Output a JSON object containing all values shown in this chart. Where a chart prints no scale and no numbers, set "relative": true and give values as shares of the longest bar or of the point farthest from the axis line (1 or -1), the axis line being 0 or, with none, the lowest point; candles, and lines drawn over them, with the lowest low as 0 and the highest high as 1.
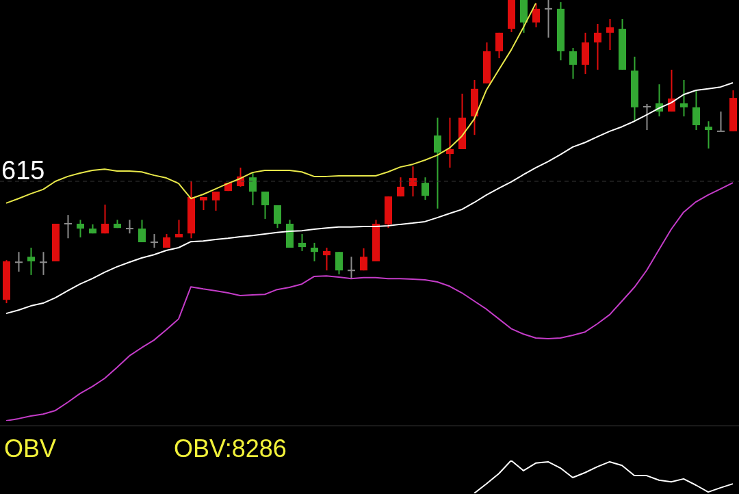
{
  "chart_data": [
    {
      "type": "candlestick",
      "relative": true,
      "categories": [
        null,
        null,
        null,
        null,
        null,
        null,
        null,
        null,
        null,
        null,
        null,
        null,
        null,
        null,
        null,
        null,
        null,
        null,
        null,
        null,
        null,
        null,
        null,
        null,
        null,
        null,
        null,
        null,
        null,
        null,
        null,
        null,
        null,
        null,
        null,
        null,
        null,
        null,
        null,
        null,
        null,
        null,
        null,
        null,
        null,
        null,
        null,
        null,
        null,
        null,
        null,
        null,
        null,
        null,
        null,
        null,
        null,
        null,
        null,
        null
      ],
      "ohlc": [
        [
          0.011,
          0.142,
          0,
          0.138
        ],
        [
          0.135,
          0.169,
          0.104,
          0.135
        ],
        [
          0.153,
          0.183,
          0.093,
          0.138
        ],
        [
          0.135,
          0.169,
          0.093,
          0.135
        ],
        [
          0.138,
          0.262,
          0.138,
          0.262
        ],
        [
          0.262,
          0.291,
          0.214,
          0.262
        ],
        [
          0.262,
          0.275,
          0.217,
          0.246
        ],
        [
          0.246,
          0.26,
          0.23,
          0.23
        ],
        [
          0.23,
          0.325,
          0.23,
          0.262
        ],
        [
          0.262,
          0.275,
          0.248,
          0.248
        ],
        [
          0.246,
          0.275,
          0.23,
          0.246
        ],
        [
          0.246,
          0.275,
          0.201,
          0.201
        ],
        [
          0.201,
          0.228,
          0.183,
          0.201
        ],
        [
          0.183,
          0.228,
          0.183,
          0.217
        ],
        [
          0.217,
          0.275,
          0.217,
          0.228
        ],
        [
          0.23,
          0.402,
          0.214,
          0.35
        ],
        [
          0.339,
          0.35,
          0.307,
          0.35
        ],
        [
          0.339,
          0.368,
          0.305,
          0.368
        ],
        [
          0.37,
          0.397,
          0.37,
          0.397
        ],
        [
          0.386,
          0.447,
          0.384,
          0.418
        ],
        [
          0.415,
          0.431,
          0.323,
          0.368
        ],
        [
          0.368,
          0.368,
          0.278,
          0.323
        ],
        [
          0.323,
          0.323,
          0.248,
          0.262
        ],
        [
          0.262,
          0.275,
          0.183,
          0.183
        ],
        [
          0.199,
          0.228,
          0.172,
          0.185
        ],
        [
          0.183,
          0.199,
          0.138,
          0.169
        ],
        [
          0.158,
          0.183,
          0.108,
          0.172
        ],
        [
          0.169,
          0.169,
          0.095,
          0.108
        ],
        [
          0.108,
          0.153,
          0.081,
          0.108
        ],
        [
          0.108,
          0.181,
          0.108,
          0.153
        ],
        [
          0.138,
          0.275,
          0.138,
          0.262
        ],
        [
          0.26,
          0.352,
          0.248,
          0.352
        ],
        [
          0.352,
          0.415,
          0.352,
          0.384
        ],
        [
          0.386,
          0.451,
          0.352,
          0.413
        ],
        [
          0.397,
          0.415,
          0.341,
          0.354
        ],
        [
          0.553,
          0.612,
          0.312,
          0.497
        ],
        [
          0.492,
          0.612,
          0.447,
          0.508
        ],
        [
          0.508,
          0.691,
          0.508,
          0.612
        ],
        [
          0.616,
          0.736,
          0.555,
          0.707
        ],
        [
          0.725,
          0.86,
          0.725,
          0.831
        ],
        [
          0.831,
          0.892,
          0.808,
          0.892
        ],
        [
          0.905,
          1,
          0.894,
          1
        ],
        [
          1,
          1,
          0.892,
          0.926
        ],
        [
          0.926,
          0.989,
          0.91,
          0.971
        ],
        [
          0.971,
          1,
          0.876,
          0.971
        ],
        [
          0.971,
          0.993,
          0.801,
          0.831
        ],
        [
          0.831,
          0.842,
          0.74,
          0.786
        ],
        [
          0.786,
          0.892,
          0.756,
          0.86
        ],
        [
          0.86,
          0.921,
          0.77,
          0.892
        ],
        [
          0.892,
          0.937,
          0.835,
          0.91
        ],
        [
          0.905,
          0.937,
          0.77,
          0.77
        ],
        [
          0.767,
          0.813,
          0.6,
          0.646
        ],
        [
          0.648,
          0.657,
          0.571,
          0.648
        ],
        [
          0.659,
          0.722,
          0.616,
          0.632
        ],
        [
          0.632,
          0.77,
          0.632,
          0.675
        ],
        [
          0.659,
          0.736,
          0.616,
          0.646
        ],
        [
          0.646,
          0.702,
          0.571,
          0.587
        ],
        [
          0.582,
          0.6,
          0.51,
          0.571
        ],
        [
          0.567,
          0.632,
          0.567,
          0.567
        ],
        [
          0.567,
          0.702,
          0.567,
          0.677
        ]
      ],
      "colors": [
        "#e00d0d",
        "#8c8c8c",
        "#33a833",
        "#8c8c8c",
        "#e00d0d",
        "#8c8c8c",
        "#33a833",
        "#33a833",
        "#e00d0d",
        "#33a833",
        "#8c8c8c",
        "#33a833",
        "#8c8c8c",
        "#e00d0d",
        "#e00d0d",
        "#e00d0d",
        "#e00d0d",
        "#e00d0d",
        "#e00d0d",
        "#e00d0d",
        "#33a833",
        "#33a833",
        "#33a833",
        "#33a833",
        "#33a833",
        "#33a833",
        "#e00d0d",
        "#33a833",
        "#8c8c8c",
        "#e00d0d",
        "#e00d0d",
        "#e00d0d",
        "#e00d0d",
        "#e00d0d",
        "#33a833",
        "#33a833",
        "#e00d0d",
        "#e00d0d",
        "#e00d0d",
        "#e00d0d",
        "#e00d0d",
        "#e00d0d",
        "#33a833",
        "#e00d0d",
        "#8c8c8c",
        "#33a833",
        "#33a833",
        "#e00d0d",
        "#e00d0d",
        "#e00d0d",
        "#33a833",
        "#33a833",
        "#8c8c8c",
        "#33a833",
        "#e00d0d",
        "#33a833",
        "#33a833",
        "#33a833",
        "#8c8c8c",
        "#e00d0d"
      ],
      "series": [
        {
          "type": "line",
          "color": "#e8e84a",
          "values": [
            0.33,
            0.345,
            0.361,
            0.375,
            0.402,
            0.418,
            0.429,
            0.438,
            0.442,
            0.436,
            0.436,
            0.433,
            0.422,
            0.413,
            0.395,
            0.345,
            0.359,
            0.377,
            0.395,
            0.411,
            0.431,
            0.438,
            0.438,
            0.438,
            0.433,
            0.418,
            0.418,
            0.42,
            0.42,
            0.42,
            0.42,
            0.433,
            0.449,
            0.458,
            0.472,
            0.488,
            0.512,
            0.551,
            0.607,
            0.704,
            0.77,
            0.835,
            0.91,
            0.989,
            null,
            null,
            null,
            null,
            null,
            null,
            null,
            null,
            null,
            null,
            null,
            null,
            null,
            null,
            null,
            null
          ]
        },
        {
          "type": "line",
          "color": "#ffffff",
          "values": [
            -0.034,
            -0.023,
            -0.009,
            0,
            0.018,
            0.041,
            0.063,
            0.081,
            0.102,
            0.12,
            0.135,
            0.149,
            0.16,
            0.174,
            0.183,
            0.203,
            0.205,
            0.21,
            0.214,
            0.219,
            0.223,
            0.228,
            0.233,
            0.237,
            0.239,
            0.244,
            0.248,
            0.251,
            0.251,
            0.253,
            0.253,
            0.255,
            0.26,
            0.264,
            0.269,
            0.282,
            0.296,
            0.309,
            0.332,
            0.357,
            0.379,
            0.4,
            0.424,
            0.447,
            0.467,
            0.49,
            0.515,
            0.53,
            0.549,
            0.567,
            0.582,
            0.6,
            0.621,
            0.643,
            0.661,
            0.688,
            0.702,
            0.707,
            0.713,
            0.727
          ]
        },
        {
          "type": "line",
          "color": "#c43cc8",
          "values": [
            -0.388,
            -0.381,
            -0.372,
            -0.366,
            -0.354,
            -0.327,
            -0.298,
            -0.275,
            -0.248,
            -0.212,
            -0.174,
            -0.147,
            -0.122,
            -0.088,
            -0.052,
            0.054,
            0.047,
            0.041,
            0.034,
            0.025,
            0.027,
            0.029,
            0.045,
            0.052,
            0.063,
            0.088,
            0.09,
            0.086,
            0.081,
            0.084,
            0.084,
            0.081,
            0.081,
            0.079,
            0.077,
            0.07,
            0.056,
            0.034,
            0.007,
            -0.02,
            -0.052,
            -0.084,
            -0.102,
            -0.115,
            -0.117,
            -0.115,
            -0.106,
            -0.095,
            -0.068,
            -0.038,
            0.007,
            0.052,
            0.108,
            0.176,
            0.244,
            0.3,
            0.334,
            0.357,
            0.377,
            0.397
          ]
        }
      ],
      "annotations": [
        "615"
      ],
      "ref_lines": [
        {
          "axis": "y",
          "value": 0.402,
          "color": "#3a3a3a",
          "line_style": "dashed"
        }
      ]
    },
    {
      "type": "line",
      "relative": true,
      "title": "OBV",
      "annotations": [
        "OBV:8286"
      ],
      "categories": [
        null,
        null,
        null,
        null,
        null,
        null,
        null,
        null,
        null,
        null,
        null,
        null,
        null,
        null,
        null,
        null,
        null,
        null,
        null,
        null,
        null,
        null,
        null,
        null,
        null,
        null,
        null,
        null,
        null,
        null,
        null,
        null,
        null,
        null,
        null,
        null,
        null,
        null,
        null,
        null,
        null,
        null,
        null,
        null,
        null,
        null,
        null,
        null,
        null,
        null,
        null,
        null,
        null,
        null,
        null,
        null,
        null,
        null,
        null,
        null
      ],
      "series": [
        {
          "color": "#ffffff",
          "values": [
            null,
            null,
            null,
            null,
            null,
            null,
            null,
            null,
            null,
            null,
            null,
            null,
            null,
            null,
            null,
            null,
            null,
            null,
            null,
            null,
            null,
            null,
            null,
            null,
            null,
            null,
            null,
            null,
            null,
            null,
            null,
            null,
            null,
            null,
            null,
            null,
            null,
            null,
            0,
            0.29,
            0.6,
            1,
            0.69,
            0.92,
            0.96,
            0.77,
            0.48,
            0.63,
            0.81,
            0.96,
            0.85,
            0.54,
            0.54,
            0.4,
            0.35,
            0.44,
            0.25,
            0.04,
            0.17,
            0.29
          ]
        }
      ]
    }
  ]
}
